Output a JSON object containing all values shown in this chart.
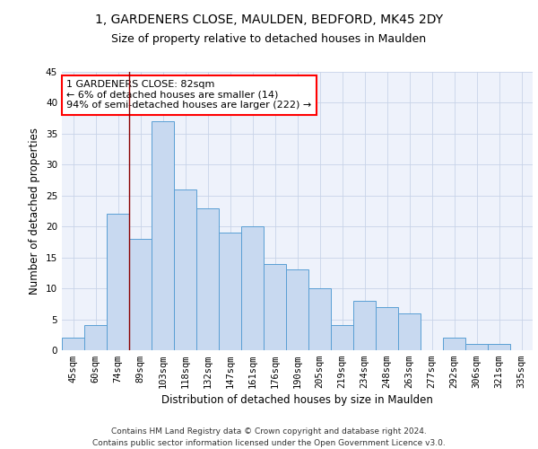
{
  "title_line1": "1, GARDENERS CLOSE, MAULDEN, BEDFORD, MK45 2DY",
  "title_line2": "Size of property relative to detached houses in Maulden",
  "xlabel": "Distribution of detached houses by size in Maulden",
  "ylabel": "Number of detached properties",
  "bar_labels": [
    "45sqm",
    "60sqm",
    "74sqm",
    "89sqm",
    "103sqm",
    "118sqm",
    "132sqm",
    "147sqm",
    "161sqm",
    "176sqm",
    "190sqm",
    "205sqm",
    "219sqm",
    "234sqm",
    "248sqm",
    "263sqm",
    "277sqm",
    "292sqm",
    "306sqm",
    "321sqm",
    "335sqm"
  ],
  "bar_values": [
    2,
    4,
    22,
    18,
    37,
    26,
    23,
    19,
    20,
    14,
    13,
    10,
    4,
    8,
    7,
    6,
    0,
    2,
    1,
    1,
    0
  ],
  "bar_color": "#c8d9f0",
  "bar_edge_color": "#5a9fd4",
  "vline_x": 2.5,
  "vline_color": "#8b0000",
  "annotation_text": "1 GARDENERS CLOSE: 82sqm\n← 6% of detached houses are smaller (14)\n94% of semi-detached houses are larger (222) →",
  "annotation_box_color": "white",
  "annotation_box_edge_color": "red",
  "ylim": [
    0,
    45
  ],
  "yticks": [
    0,
    5,
    10,
    15,
    20,
    25,
    30,
    35,
    40,
    45
  ],
  "grid_color": "#c8d4e8",
  "background_color": "#eef2fb",
  "footer_text": "Contains HM Land Registry data © Crown copyright and database right 2024.\nContains public sector information licensed under the Open Government Licence v3.0.",
  "title_fontsize": 10,
  "subtitle_fontsize": 9,
  "axis_label_fontsize": 8.5,
  "tick_fontsize": 7.5,
  "annotation_fontsize": 8,
  "footer_fontsize": 6.5
}
